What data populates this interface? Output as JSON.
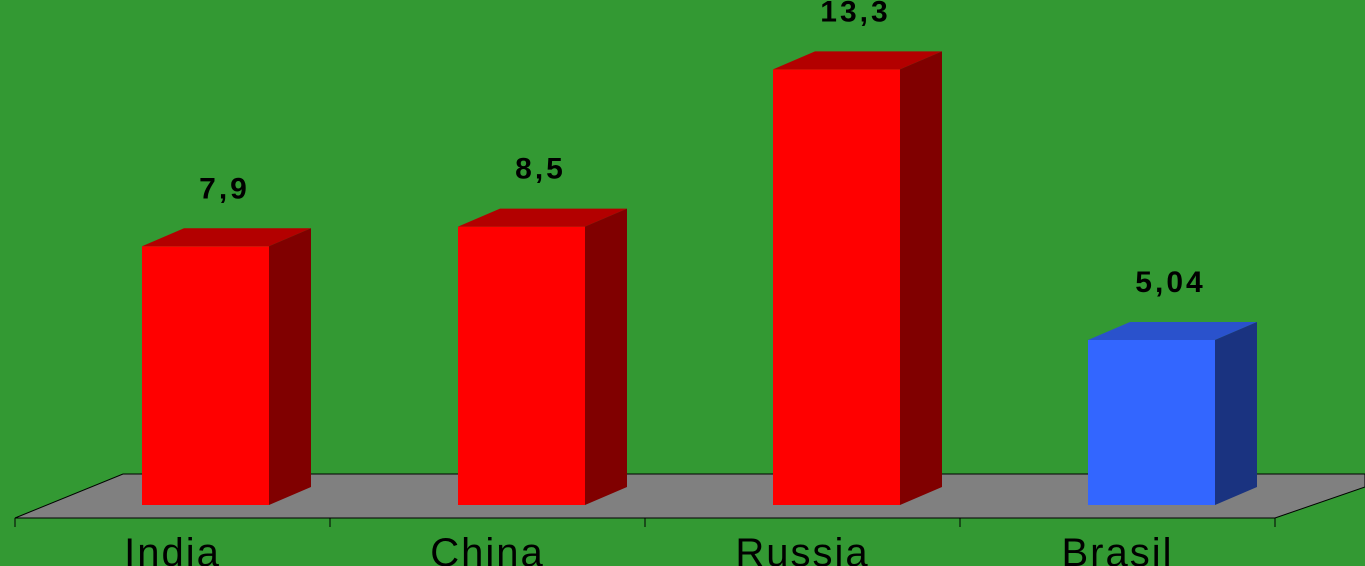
{
  "chart_data": {
    "type": "bar",
    "categories": [
      "India",
      "China",
      "Russia",
      "Brasil"
    ],
    "values": [
      7.9,
      8.5,
      13.3,
      5.04
    ],
    "value_labels": [
      "7,9",
      "8,5",
      "13,3",
      "5,04"
    ],
    "title": "",
    "xlabel": "",
    "ylabel": "",
    "ylim": [
      0,
      14
    ],
    "grid": false,
    "three_d": true
  },
  "colors": {
    "background": "#339933",
    "floor": "#808080",
    "bar_front": [
      "#FF0000",
      "#FF0000",
      "#FF0000",
      "#3366FF"
    ],
    "bar_top": [
      "#B30000",
      "#B30000",
      "#B30000",
      "#2A52CC"
    ],
    "bar_side": [
      "#800000",
      "#800000",
      "#800000",
      "#1A3380"
    ]
  }
}
